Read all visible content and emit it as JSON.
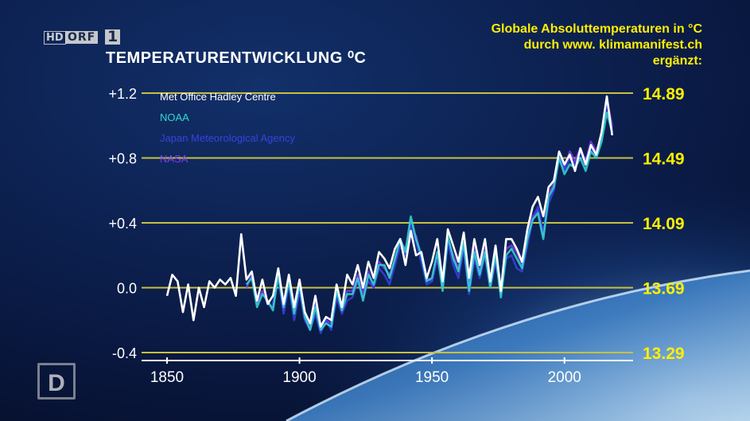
{
  "broadcaster": {
    "hd_label": "HD",
    "orf_label": "ORF",
    "channel_number": "1",
    "corner_logo": "D"
  },
  "annotation": {
    "line1": "Globale Absoluttemperaturen in °C",
    "line2": "durch www. klimamanifest.ch",
    "line3": "ergänzt:"
  },
  "colors": {
    "gridline": "#c8c040",
    "annotation_text": "#ffef00",
    "hadley": "#ffffff",
    "noaa": "#35d8d0",
    "jma": "#3a40e0",
    "nasa": "#7a3cf0"
  },
  "chart_data": {
    "type": "line",
    "title": "TEMPERATURENTWICKLUNG ⁰C",
    "xlabel": "",
    "ylabel": "",
    "xlim": [
      1835,
      2025
    ],
    "ylim": [
      -0.4,
      1.2
    ],
    "xticks": [
      "1850",
      "1900",
      "1950",
      "2000"
    ],
    "yticks": [
      "+1.2",
      "+0.8",
      "+0.4",
      "0.0",
      "-0.4"
    ],
    "grid": "horizontal lines at y ticks",
    "legend_position": "top-left",
    "right_axis_labels": [
      "14.89",
      "14.49",
      "14.09",
      "13.69",
      "13.29"
    ],
    "series": [
      {
        "name": "Met Office Hadley Centre",
        "x": [
          1850,
          1852,
          1854,
          1856,
          1858,
          1860,
          1862,
          1864,
          1866,
          1868,
          1870,
          1872,
          1874,
          1876,
          1878,
          1880,
          1882,
          1884,
          1886,
          1888,
          1890,
          1892,
          1894,
          1896,
          1898,
          1900,
          1902,
          1904,
          1906,
          1908,
          1910,
          1912,
          1914,
          1916,
          1918,
          1920,
          1922,
          1924,
          1926,
          1928,
          1930,
          1932,
          1934,
          1936,
          1938,
          1940,
          1942,
          1944,
          1946,
          1948,
          1950,
          1952,
          1954,
          1956,
          1958,
          1960,
          1962,
          1964,
          1966,
          1968,
          1970,
          1972,
          1974,
          1976,
          1978,
          1980,
          1982,
          1984,
          1986,
          1988,
          1990,
          1992,
          1994,
          1996,
          1998,
          2000,
          2002,
          2004,
          2006,
          2008,
          2010,
          2012,
          2014,
          2016,
          2018
        ],
        "values": [
          -0.05,
          0.08,
          0.04,
          -0.15,
          0.02,
          -0.2,
          0.0,
          -0.12,
          0.04,
          0.0,
          0.05,
          0.02,
          0.06,
          -0.05,
          0.33,
          0.05,
          0.1,
          -0.08,
          0.05,
          -0.1,
          -0.05,
          0.12,
          -0.1,
          0.08,
          -0.12,
          0.05,
          -0.15,
          -0.22,
          -0.05,
          -0.24,
          -0.18,
          -0.2,
          0.02,
          -0.12,
          0.08,
          0.02,
          0.14,
          0.0,
          0.16,
          0.06,
          0.22,
          0.18,
          0.12,
          0.24,
          0.3,
          0.14,
          0.35,
          0.2,
          0.22,
          0.06,
          0.16,
          0.3,
          0.04,
          0.36,
          0.26,
          0.16,
          0.34,
          0.06,
          0.3,
          0.14,
          0.3,
          0.04,
          0.26,
          -0.02,
          0.3,
          0.3,
          0.24,
          0.16,
          0.36,
          0.5,
          0.56,
          0.44,
          0.62,
          0.66,
          0.84,
          0.76,
          0.82,
          0.72,
          0.86,
          0.76,
          0.88,
          0.82,
          0.96,
          1.18,
          0.94
        ]
      },
      {
        "name": "NOAA",
        "x": [
          1880,
          1882,
          1884,
          1886,
          1888,
          1890,
          1892,
          1894,
          1896,
          1898,
          1900,
          1902,
          1904,
          1906,
          1908,
          1910,
          1912,
          1914,
          1916,
          1918,
          1920,
          1922,
          1924,
          1926,
          1928,
          1930,
          1932,
          1934,
          1936,
          1938,
          1940,
          1942,
          1944,
          1946,
          1948,
          1950,
          1952,
          1954,
          1956,
          1958,
          1960,
          1962,
          1964,
          1966,
          1968,
          1970,
          1972,
          1974,
          1976,
          1978,
          1980,
          1982,
          1984,
          1986,
          1988,
          1990,
          1992,
          1994,
          1996,
          1998,
          2000,
          2002,
          2004,
          2006,
          2008,
          2010,
          2012,
          2014,
          2016,
          2018
        ],
        "values": [
          0.02,
          0.06,
          -0.12,
          -0.04,
          -0.08,
          -0.14,
          0.08,
          -0.12,
          0.04,
          -0.16,
          0.02,
          -0.18,
          -0.26,
          -0.12,
          -0.26,
          -0.22,
          -0.24,
          -0.02,
          -0.14,
          -0.04,
          -0.04,
          0.06,
          -0.08,
          0.08,
          0.02,
          0.14,
          0.14,
          0.06,
          0.18,
          0.3,
          0.22,
          0.44,
          0.3,
          0.2,
          0.04,
          0.06,
          0.22,
          -0.02,
          0.32,
          0.18,
          0.1,
          0.28,
          -0.02,
          0.22,
          0.08,
          0.22,
          0.0,
          0.2,
          -0.06,
          0.2,
          0.24,
          0.18,
          0.12,
          0.3,
          0.42,
          0.46,
          0.3,
          0.56,
          0.62,
          0.8,
          0.7,
          0.76,
          0.74,
          0.8,
          0.72,
          0.84,
          0.8,
          0.9,
          1.08,
          0.96
        ]
      },
      {
        "name": "Japan Meteorological Agency",
        "x": [
          1890,
          1892,
          1894,
          1896,
          1898,
          1900,
          1902,
          1904,
          1906,
          1908,
          1910,
          1912,
          1914,
          1916,
          1918,
          1920,
          1922,
          1924,
          1926,
          1928,
          1930,
          1932,
          1934,
          1936,
          1938,
          1940,
          1942,
          1944,
          1946,
          1948,
          1950,
          1952,
          1954,
          1956,
          1958,
          1960,
          1962,
          1964,
          1966,
          1968,
          1970,
          1972,
          1974,
          1976,
          1978,
          1980,
          1982,
          1984,
          1986,
          1988,
          1990,
          1992,
          1994,
          1996,
          1998,
          2000,
          2002,
          2004,
          2006,
          2008,
          2010,
          2012,
          2014,
          2016,
          2018
        ],
        "values": [
          -0.1,
          0.06,
          -0.16,
          0.02,
          -0.2,
          -0.02,
          -0.2,
          -0.26,
          -0.16,
          -0.28,
          -0.2,
          -0.26,
          -0.06,
          -0.16,
          -0.08,
          -0.06,
          0.04,
          -0.06,
          0.04,
          0.0,
          0.12,
          0.08,
          0.02,
          0.14,
          0.26,
          0.2,
          0.4,
          0.28,
          0.16,
          0.02,
          0.04,
          0.18,
          0.0,
          0.28,
          0.14,
          0.06,
          0.24,
          -0.04,
          0.18,
          0.06,
          0.2,
          0.0,
          0.16,
          -0.02,
          0.18,
          0.2,
          0.12,
          0.1,
          0.26,
          0.42,
          0.5,
          0.34,
          0.52,
          0.6,
          0.82,
          0.72,
          0.8,
          0.76,
          0.84,
          0.74,
          0.86,
          0.8,
          0.92,
          1.14,
          0.98
        ]
      },
      {
        "name": "NASA",
        "x": [
          1880,
          1882,
          1884,
          1886,
          1888,
          1890,
          1892,
          1894,
          1896,
          1898,
          1900,
          1902,
          1904,
          1906,
          1908,
          1910,
          1912,
          1914,
          1916,
          1918,
          1920,
          1922,
          1924,
          1926,
          1928,
          1930,
          1932,
          1934,
          1936,
          1938,
          1940,
          1942,
          1944,
          1946,
          1948,
          1950,
          1952,
          1954,
          1956,
          1958,
          1960,
          1962,
          1964,
          1966,
          1968,
          1970,
          1972,
          1974,
          1976,
          1978,
          1980,
          1982,
          1984,
          1986,
          1988,
          1990,
          1992,
          1994,
          1996,
          1998,
          2000,
          2002,
          2004,
          2006,
          2008,
          2010,
          2012,
          2014,
          2016,
          2018
        ],
        "values": [
          0.0,
          0.08,
          -0.1,
          -0.02,
          -0.1,
          -0.12,
          0.1,
          -0.14,
          0.06,
          -0.14,
          0.0,
          -0.16,
          -0.24,
          -0.1,
          -0.24,
          -0.2,
          -0.22,
          0.0,
          -0.12,
          -0.02,
          -0.02,
          0.08,
          -0.04,
          0.1,
          0.0,
          0.16,
          0.12,
          0.08,
          0.16,
          0.28,
          0.24,
          0.36,
          0.32,
          0.18,
          0.06,
          0.04,
          0.2,
          0.02,
          0.3,
          0.2,
          0.12,
          0.26,
          0.0,
          0.24,
          0.1,
          0.24,
          0.04,
          0.22,
          -0.04,
          0.24,
          0.26,
          0.22,
          0.14,
          0.32,
          0.44,
          0.48,
          0.32,
          0.58,
          0.64,
          0.82,
          0.74,
          0.84,
          0.78,
          0.86,
          0.78,
          0.9,
          0.84,
          0.94,
          1.16,
          1.0
        ]
      }
    ]
  }
}
